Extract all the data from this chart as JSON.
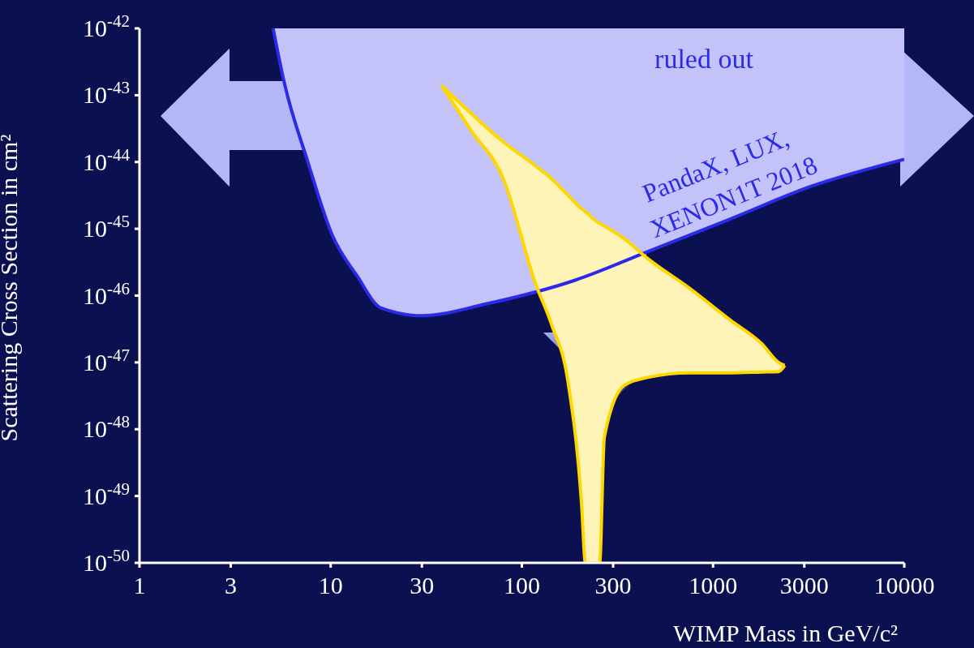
{
  "chart_data": {
    "type": "line",
    "xlabel": "WIMP Mass in GeV/c²",
    "ylabel": "Scattering Cross Section in cm²",
    "log": "xy",
    "xlim": [
      1,
      10000
    ],
    "xticks": [
      1,
      3,
      10,
      30,
      100,
      300,
      1000,
      3000,
      10000
    ],
    "ylim": [
      1e-50,
      1e-42
    ],
    "yticks": [
      {
        "value": 1e-50,
        "label": "10$^{-50}$"
      },
      {
        "value": 1e-49,
        "label": "10$^{-49}$"
      },
      {
        "value": 1e-48,
        "label": "10$^{-48}$"
      },
      {
        "value": 1e-47,
        "label": "10$^{-47}$"
      },
      {
        "value": 1e-46,
        "label": "10$^{-46}$"
      },
      {
        "value": 1e-45,
        "label": "10$^{-45}$"
      },
      {
        "value": 1e-44,
        "label": "10$^{-44}$"
      },
      {
        "value": 1e-43,
        "label": "10$^{-43}$"
      },
      {
        "value": 1e-42,
        "label": "10$^{-42}$"
      }
    ],
    "annotations": [
      "ruled out"
    ],
    "series": [
      {
        "name": "PandaX, LUX, XENON1T 2018",
        "color": "#2a2ae8",
        "x": [
          5,
          5.7,
          7.6,
          10.2,
          13.7,
          18.4,
          30,
          65,
          190,
          460,
          1230,
          3240,
          10000
        ],
        "values": [
          1e-42,
          1.6e-43,
          1e-44,
          8e-46,
          2e-46,
          6.5e-47,
          5e-47,
          7.5e-47,
          1.7e-46,
          4.6e-46,
          1.4e-45,
          4.3e-45,
          1.1e-44
        ],
        "lower": [
          1e-42,
          1.6e-43,
          1e-44,
          8e-46,
          2e-46,
          6.5e-47,
          5e-47,
          7.5e-47,
          1.7e-46,
          4.6e-46,
          1.4e-45,
          4.3e-45,
          1.1e-44
        ],
        "upper": [
          1e-42,
          1e-42,
          1e-42,
          1e-42,
          1e-42,
          1e-42,
          1e-42,
          1e-42,
          1e-42,
          1e-42,
          1e-42,
          1e-42,
          1e-42
        ]
      },
      {
        "color": "#ffd700",
        "x": [
          38,
          54,
          80,
          118,
          143,
          174,
          205,
          215,
          255,
          270,
          345,
          460,
          750,
          1230,
          1800,
          2200,
          2370
        ],
        "values": [
          1.4e-43,
          5.4e-44,
          2e-44,
          8.7e-45,
          5.6e-45,
          3.2e-45,
          2e-45,
          1.8e-45,
          1.2e-45,
          1.1e-45,
          7e-46,
          3.5e-46,
          1.3e-46,
          4.3e-47,
          1.9e-47,
          1e-47,
          9e-48
        ],
        "lower": [
          1.4e-43,
          3e-44,
          5.6e-45,
          1.5e-46,
          3.7e-47,
          5.3e-48,
          8e-50,
          1e-50,
          1e-50,
          7.6e-49,
          4.6e-48,
          6e-48,
          7e-48,
          7e-48,
          7.2e-48,
          7.3e-48,
          9e-48
        ],
        "upper": [
          1.4e-43,
          5.4e-44,
          2e-44,
          8.7e-45,
          5.6e-45,
          3.2e-45,
          2e-45,
          1.8e-45,
          1.2e-45,
          1.1e-45,
          7e-46,
          3.5e-46,
          1.3e-46,
          4.3e-47,
          1.9e-47,
          1e-47,
          9e-48
        ]
      },
      {
        "color": "#ffd700",
        "x": [
          38,
          54,
          80,
          118,
          143,
          174,
          205,
          215,
          255,
          270,
          345,
          460,
          750,
          1230,
          1800,
          2200,
          2370
        ],
        "values": [
          1.4e-43,
          3e-44,
          5.6e-45,
          1.5e-46,
          3.7e-47,
          5.3e-48,
          8e-50,
          1e-50,
          1e-50,
          7.6e-49,
          4.6e-48,
          6e-48,
          7e-48,
          7e-48,
          7.2e-48,
          7.3e-48,
          9e-48
        ]
      }
    ]
  }
}
